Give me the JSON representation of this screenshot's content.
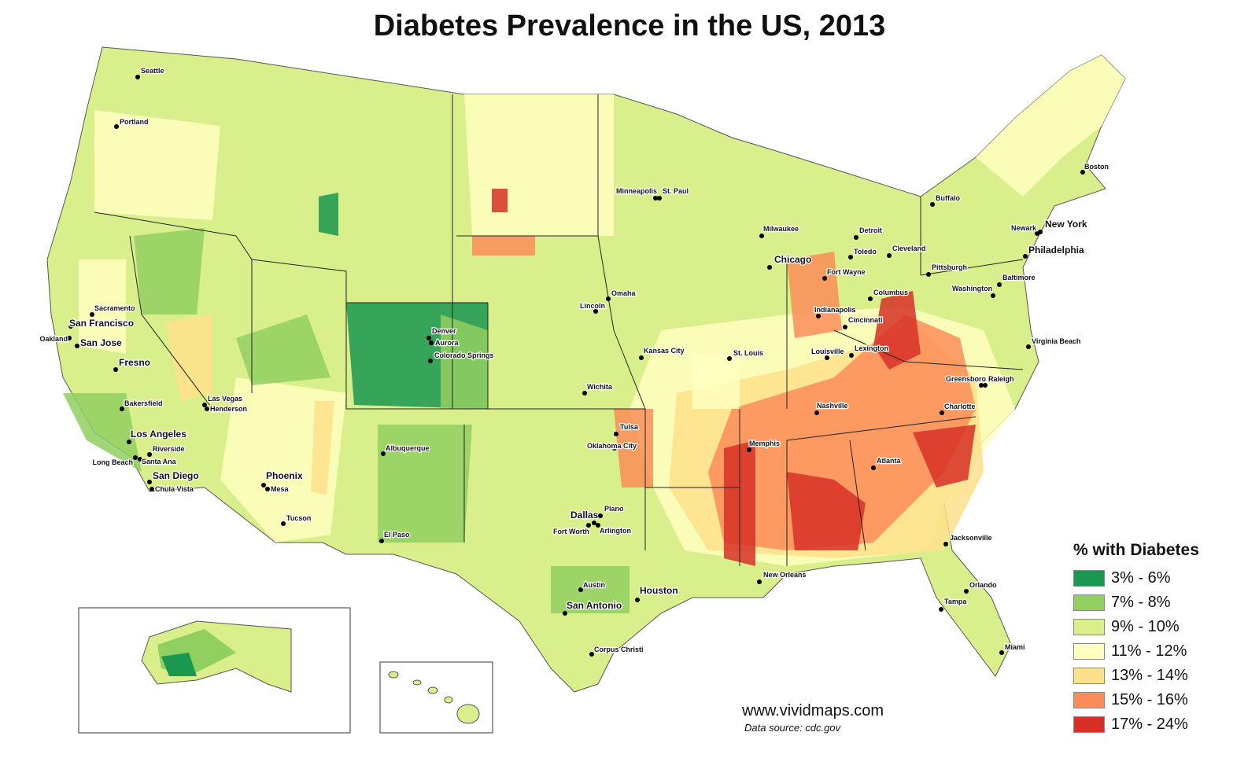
{
  "title": "Diabetes Prevalence in the US, 2013",
  "legend": {
    "title": "% with Diabetes",
    "items": [
      {
        "label": "3% - 6%",
        "color": "#1a9850"
      },
      {
        "label": "7% - 8%",
        "color": "#91cf60"
      },
      {
        "label": "9% - 10%",
        "color": "#d9ef8b"
      },
      {
        "label": "11% - 12%",
        "color": "#ffffbf"
      },
      {
        "label": "13% - 14%",
        "color": "#fee08b"
      },
      {
        "label": "15% - 16%",
        "color": "#fc8d59"
      },
      {
        "label": "17% - 24%",
        "color": "#d73027"
      }
    ]
  },
  "cities": [
    "Seattle",
    "Portland",
    "Sacramento",
    "San Francisco",
    "Oakland",
    "San Jose",
    "Fresno",
    "Bakersfield",
    "Los Angeles",
    "Riverside",
    "Long Beach",
    "Santa Ana",
    "San Diego",
    "Chula Vista",
    "Las Vegas",
    "Henderson",
    "Phoenix",
    "Mesa",
    "Tucson",
    "Albuquerque",
    "El Paso",
    "Denver",
    "Aurora",
    "Colorado Springs",
    "Wichita",
    "Oklahoma City",
    "Tulsa",
    "Dallas",
    "Fort Worth",
    "Plano",
    "Arlington",
    "Austin",
    "San Antonio",
    "Houston",
    "Corpus Christi",
    "Kansas City",
    "Omaha",
    "Lincoln",
    "Minneapolis",
    "St. Paul",
    "Milwaukee",
    "Chicago",
    "St. Louis",
    "Memphis",
    "Nashville",
    "Louisville",
    "Lexington",
    "Indianapolis",
    "Cincinnati",
    "Fort Wayne",
    "Columbus",
    "Toledo",
    "Detroit",
    "Cleveland",
    "Pittsburgh",
    "Buffalo",
    "New Orleans",
    "Atlanta",
    "Jacksonville",
    "Orlando",
    "Tampa",
    "Miami",
    "Charlotte",
    "Greensboro",
    "Raleigh",
    "Virginia Beach",
    "Washington",
    "Baltimore",
    "Philadelphia",
    "New York",
    "Newark",
    "Boston"
  ],
  "website": "www.vividmaps.com",
  "source": "Data source: cdc.gov"
}
